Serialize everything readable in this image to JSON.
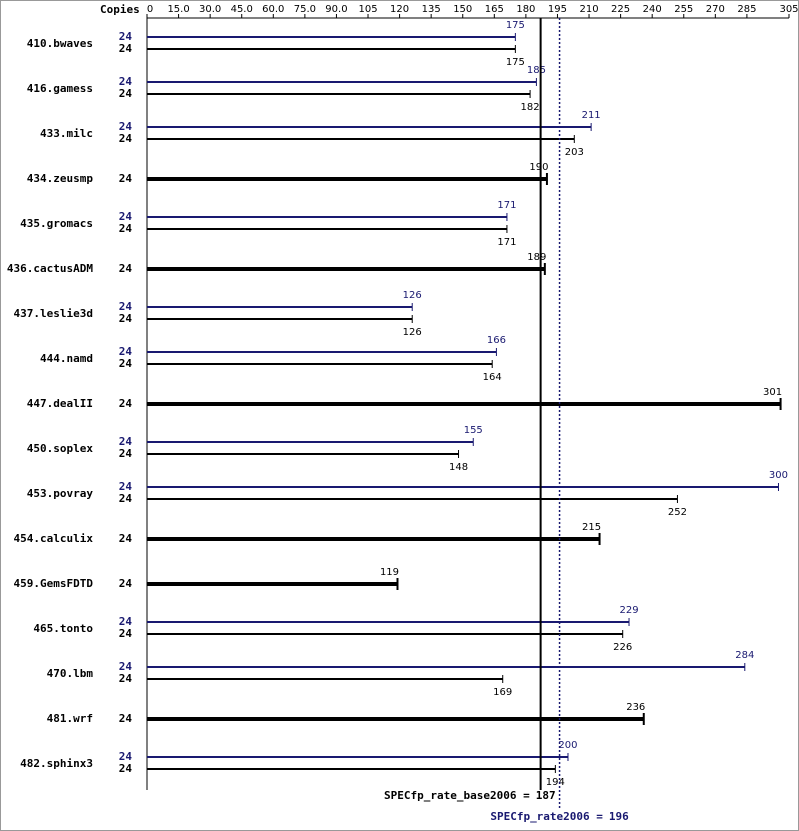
{
  "axis_label": "Copies",
  "chart_data": {
    "type": "spec-rate",
    "xlim": [
      0,
      305
    ],
    "xticks": [
      0,
      {
        "value": 15,
        "label": "15.0"
      },
      {
        "value": 30,
        "label": "30.0"
      },
      {
        "value": 45,
        "label": "45.0"
      },
      {
        "value": 60,
        "label": "60.0"
      },
      {
        "value": 75,
        "label": "75.0"
      },
      {
        "value": 90,
        "label": "90.0"
      },
      105,
      120,
      135,
      150,
      165,
      180,
      195,
      210,
      225,
      240,
      255,
      270,
      285,
      305
    ],
    "categories": [
      "410.bwaves",
      "416.gamess",
      "433.milc",
      "434.zeusmp",
      "435.gromacs",
      "436.cactusADM",
      "437.leslie3d",
      "444.namd",
      "447.dealII",
      "450.soplex",
      "453.povray",
      "454.calculix",
      "459.GemsFDTD",
      "465.tonto",
      "470.lbm",
      "481.wrf",
      "482.sphinx3"
    ],
    "peak": {
      "color": "#191970",
      "copies": [
        24,
        24,
        24,
        null,
        24,
        null,
        24,
        24,
        null,
        24,
        24,
        null,
        null,
        24,
        24,
        null,
        24
      ],
      "values": [
        175,
        185,
        211,
        null,
        171,
        null,
        126,
        166,
        null,
        155,
        300,
        null,
        null,
        229,
        284,
        null,
        200
      ]
    },
    "base": {
      "color": "#000000",
      "copies": [
        24,
        24,
        24,
        24,
        24,
        24,
        24,
        24,
        24,
        24,
        24,
        24,
        24,
        24,
        24,
        24,
        24
      ],
      "values": [
        175,
        182,
        203,
        190,
        171,
        189,
        126,
        164,
        301,
        148,
        252,
        215,
        119,
        226,
        169,
        236,
        194
      ]
    },
    "reference_lines": [
      {
        "label": "SPECfp_rate_base2006 =",
        "value": 187,
        "color": "#000000",
        "style": "solid"
      },
      {
        "label": "SPECfp_rate2006 =",
        "value": 196,
        "color": "#191970",
        "style": "dotted"
      }
    ]
  }
}
